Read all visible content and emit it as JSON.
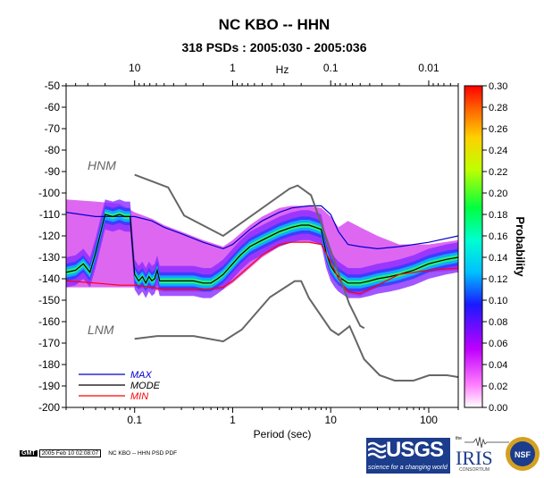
{
  "chart_data": {
    "type": "heatmap",
    "title": "NC KBO -- HHN",
    "subtitle": "318 PSDs : 2005:030 - 2005:036",
    "xlabel": "Period (sec)",
    "xscale": "log",
    "xlim": [
      0.02,
      200
    ],
    "xticks": [
      "0.1",
      "1",
      "10",
      "100"
    ],
    "top_axis_label": "Hz",
    "top_ticks": [
      "10",
      "1",
      "0.1",
      "0.01"
    ],
    "ylim": [
      -200,
      -50
    ],
    "yticks": [
      "-50",
      "-60",
      "-70",
      "-80",
      "-90",
      "-100",
      "-110",
      "-120",
      "-130",
      "-140",
      "-150",
      "-160",
      "-170",
      "-180",
      "-190",
      "-200"
    ],
    "colorbar": {
      "label": "Probability",
      "range": [
        0.0,
        0.3
      ],
      "ticks": [
        "0.30",
        "0.28",
        "0.26",
        "0.24",
        "0.22",
        "0.20",
        "0.18",
        "0.16",
        "0.14",
        "0.12",
        "0.10",
        "0.08",
        "0.06",
        "0.04",
        "0.02",
        "0.00"
      ]
    },
    "annotations": [
      "HNM",
      "LNM"
    ],
    "legend": {
      "placement": "bottom-left",
      "entries": [
        "MAX",
        "MODE",
        "MIN"
      ]
    },
    "series": [
      {
        "name": "MAX",
        "color": "#0000cc",
        "x": [
          0.02,
          0.04,
          0.07,
          0.1,
          0.15,
          0.2,
          0.3,
          0.5,
          0.8,
          1,
          1.5,
          2,
          3,
          4,
          6,
          8,
          10,
          12,
          15,
          20,
          30,
          50,
          100,
          200
        ],
        "y": [
          -109,
          -111,
          -111,
          -111,
          -113,
          -116,
          -119,
          -123,
          -126,
          -124,
          -117,
          -113,
          -109,
          -107,
          -106,
          -106,
          -110,
          -118,
          -124,
          -125,
          -126,
          -125,
          -123,
          -120
        ]
      },
      {
        "name": "MODE",
        "color": "#000000",
        "x": [
          0.02,
          0.025,
          0.03,
          0.035,
          0.04,
          0.05,
          0.06,
          0.07,
          0.08,
          0.09,
          0.1,
          0.11,
          0.12,
          0.13,
          0.14,
          0.15,
          0.16,
          0.17,
          0.18,
          0.2,
          0.25,
          0.3,
          0.4,
          0.5,
          0.6,
          0.7,
          0.8,
          1,
          1.2,
          1.5,
          2,
          3,
          4,
          5,
          6,
          7,
          8,
          9,
          10,
          11,
          12,
          15,
          20,
          25,
          30,
          40,
          50,
          70,
          100,
          150,
          200
        ],
        "y": [
          -137,
          -136,
          -133,
          -137,
          -128,
          -110,
          -111,
          -110,
          -111,
          -111,
          -138,
          -141,
          -139,
          -142,
          -139,
          -141,
          -140,
          -136,
          -141,
          -141,
          -141,
          -141,
          -141,
          -142,
          -142,
          -140,
          -138,
          -133,
          -129,
          -125,
          -122,
          -118,
          -116,
          -115,
          -115,
          -116,
          -117,
          -128,
          -134,
          -137,
          -139,
          -142,
          -142,
          -141,
          -140,
          -139,
          -138,
          -136,
          -133,
          -131,
          -130
        ]
      },
      {
        "name": "MIN",
        "color": "#ff0000",
        "x": [
          0.02,
          0.04,
          0.07,
          0.1,
          0.15,
          0.2,
          0.3,
          0.5,
          0.8,
          1,
          1.5,
          2,
          3,
          4,
          6,
          8,
          10,
          12,
          15,
          20,
          30,
          50,
          100,
          200
        ],
        "y": [
          -141,
          -142,
          -143,
          -143,
          -144,
          -145,
          -145,
          -145,
          -144,
          -141,
          -134,
          -129,
          -124,
          -123,
          -123,
          -124,
          -132,
          -140,
          -146,
          -147,
          -143,
          -138,
          -136,
          -135
        ]
      },
      {
        "name": "HNM",
        "color": "#666666",
        "x": [
          0.1,
          0.22,
          0.32,
          0.8,
          3.8,
          4.6,
          6.3,
          7.9,
          15.4,
          20,
          22
        ],
        "y": [
          -91.5,
          -97.4,
          -110.5,
          -120,
          -98,
          -96.5,
          -101,
          -113.5,
          -151.5,
          -162,
          -163
        ]
      },
      {
        "name": "LNM",
        "color": "#666666",
        "x": [
          0.1,
          0.17,
          0.4,
          0.8,
          1.24,
          2.4,
          4.3,
          5,
          6,
          10,
          12,
          15.6,
          21.9,
          31.6,
          45,
          70,
          101,
          154,
          328,
          600,
          10000
        ],
        "y": [
          -168,
          -166.7,
          -166.7,
          -169.2,
          -163.7,
          -148.6,
          -141.1,
          -141.1,
          -149,
          -163.8,
          -166.2,
          -162.1,
          -177.5,
          -185,
          -187.5,
          -187.5,
          -185,
          -185,
          -187.5,
          -184.4,
          -151.9
        ]
      }
    ],
    "density_band": {
      "x": [
        0.02,
        0.04,
        0.07,
        0.1,
        0.15,
        0.2,
        0.3,
        0.5,
        0.8,
        1,
        1.5,
        2,
        3,
        4,
        6,
        8,
        10,
        12,
        15,
        20,
        30,
        50,
        100,
        200
      ],
      "y_top": [
        -103,
        -104,
        -105,
        -109,
        -112,
        -115,
        -118,
        -122,
        -125,
        -122,
        -115,
        -111,
        -107,
        -106,
        -106,
        -107,
        -111,
        -116,
        -113,
        -116,
        -120,
        -124,
        -124,
        -122
      ],
      "y_bot": [
        -144,
        -144,
        -144,
        -144,
        -145,
        -146,
        -146,
        -146,
        -145,
        -142,
        -135,
        -130,
        -125,
        -123,
        -123,
        -124,
        -133,
        -141,
        -147,
        -148,
        -144,
        -139,
        -137,
        -136
      ]
    }
  },
  "footer": {
    "gmt_label": "GMT",
    "timestamp": "2005 Feb 10 02:08:07",
    "caption": "NC KBO -- HHN PSD PDF",
    "usgs_label": "USGS",
    "usgs_tagline": "science for a changing world",
    "iris_the": "the",
    "iris_label": "IRIS",
    "iris_consortium": "CONSORTIUM",
    "nsf_label": "NSF"
  }
}
